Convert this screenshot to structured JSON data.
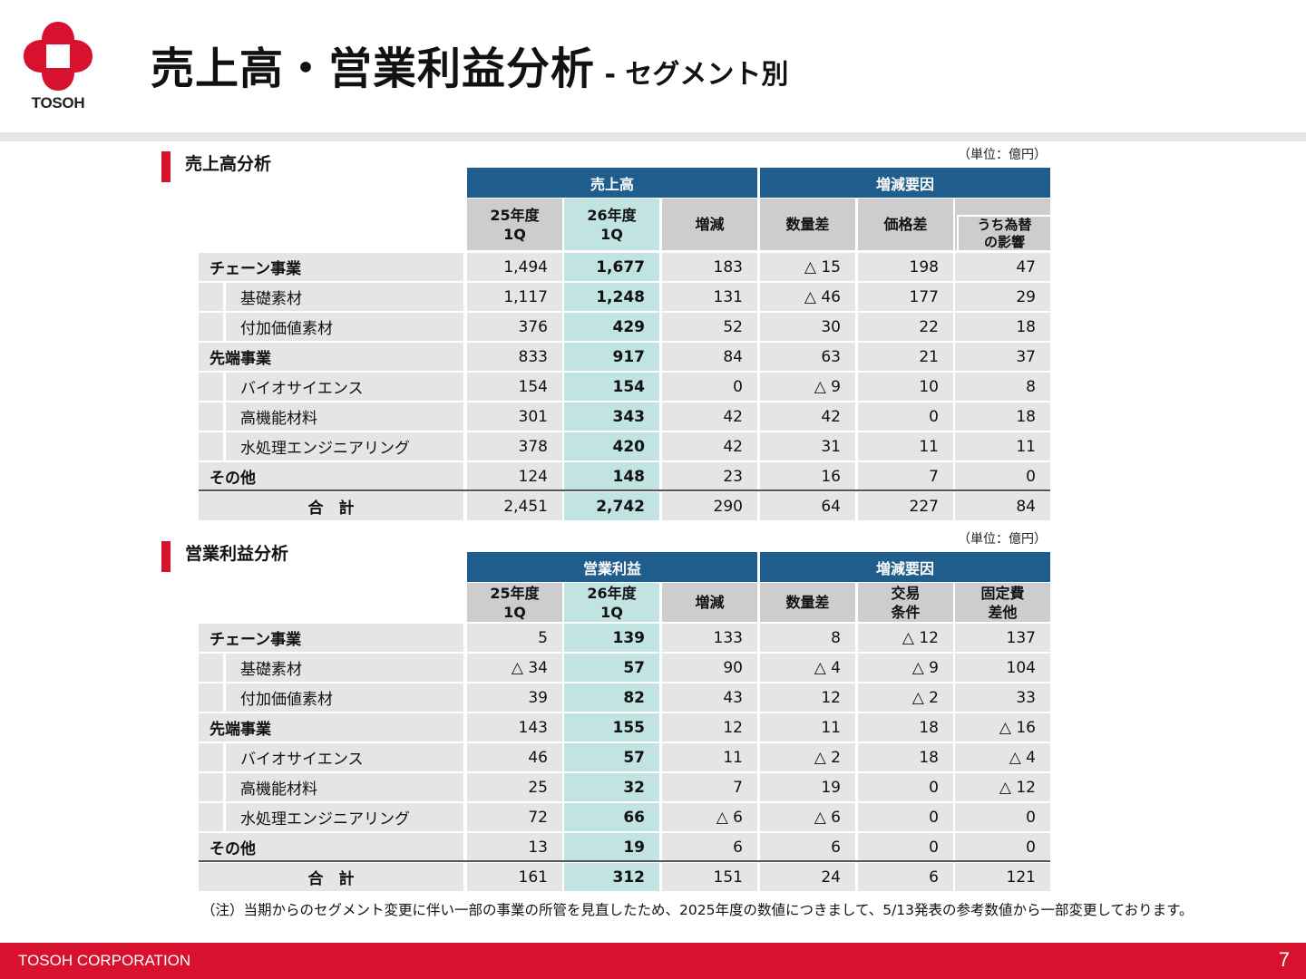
{
  "header": {
    "logo_text": "TOSOH",
    "title_main": "売上高・営業利益分析",
    "title_sub": " - セグメント別"
  },
  "sales": {
    "title": "売上高分析",
    "unit": "（単位：億円）",
    "group_left": "売上高",
    "group_right": "増減要因",
    "columns": [
      "25年度 1Q",
      "26年度 1Q",
      "増減",
      "数量差",
      "価格差",
      "うち為替 の影響"
    ],
    "rows": [
      {
        "label": "チェーン事業",
        "level": 0,
        "values": [
          "1,494",
          "1,677",
          "183",
          "△ 15",
          "198",
          "47"
        ]
      },
      {
        "label": "基礎素材",
        "level": 1,
        "values": [
          "1,117",
          "1,248",
          "131",
          "△ 46",
          "177",
          "29"
        ]
      },
      {
        "label": "付加価値素材",
        "level": 1,
        "values": [
          "376",
          "429",
          "52",
          "30",
          "22",
          "18"
        ]
      },
      {
        "label": "先端事業",
        "level": 0,
        "values": [
          "833",
          "917",
          "84",
          "63",
          "21",
          "37"
        ]
      },
      {
        "label": "バイオサイエンス",
        "level": 1,
        "values": [
          "154",
          "154",
          "0",
          "△ 9",
          "10",
          "8"
        ]
      },
      {
        "label": "高機能材料",
        "level": 1,
        "values": [
          "301",
          "343",
          "42",
          "42",
          "0",
          "18"
        ]
      },
      {
        "label": "水処理エンジニアリング",
        "level": 1,
        "values": [
          "378",
          "420",
          "42",
          "31",
          "11",
          "11"
        ]
      },
      {
        "label": "その他",
        "level": 0,
        "values": [
          "124",
          "148",
          "23",
          "16",
          "7",
          "0"
        ]
      },
      {
        "label": "合　計",
        "level": 2,
        "values": [
          "2,451",
          "2,742",
          "290",
          "64",
          "227",
          "84"
        ]
      }
    ]
  },
  "profit": {
    "title": "営業利益分析",
    "unit": "（単位：億円）",
    "group_left": "営業利益",
    "group_right": "増減要因",
    "columns": [
      "25年度 1Q",
      "26年度 1Q",
      "増減",
      "数量差",
      "交易 条件",
      "固定費 差他"
    ],
    "rows": [
      {
        "label": "チェーン事業",
        "level": 0,
        "values": [
          "5",
          "139",
          "133",
          "8",
          "△ 12",
          "137"
        ]
      },
      {
        "label": "基礎素材",
        "level": 1,
        "values": [
          "△ 34",
          "57",
          "90",
          "△ 4",
          "△ 9",
          "104"
        ]
      },
      {
        "label": "付加価値素材",
        "level": 1,
        "values": [
          "39",
          "82",
          "43",
          "12",
          "△ 2",
          "33"
        ]
      },
      {
        "label": "先端事業",
        "level": 0,
        "values": [
          "143",
          "155",
          "12",
          "11",
          "18",
          "△ 16"
        ]
      },
      {
        "label": "バイオサイエンス",
        "level": 1,
        "values": [
          "46",
          "57",
          "11",
          "△ 2",
          "18",
          "△ 4"
        ]
      },
      {
        "label": "高機能材料",
        "level": 1,
        "values": [
          "25",
          "32",
          "7",
          "19",
          "0",
          "△ 12"
        ]
      },
      {
        "label": "水処理エンジニアリング",
        "level": 1,
        "values": [
          "72",
          "66",
          "△ 6",
          "△ 6",
          "0",
          "0"
        ]
      },
      {
        "label": "その他",
        "level": 0,
        "values": [
          "13",
          "19",
          "6",
          "6",
          "0",
          "0"
        ]
      },
      {
        "label": "合　計",
        "level": 2,
        "values": [
          "161",
          "312",
          "151",
          "24",
          "6",
          "121"
        ]
      }
    ]
  },
  "note": "（注）当期からのセグメント変更に伴い一部の事業の所管を見直したため、2025年度の数値につきまして、5/13発表の参考数値から一部変更しております。",
  "footer": {
    "company": "TOSOH CORPORATION",
    "page_number": "7"
  }
}
